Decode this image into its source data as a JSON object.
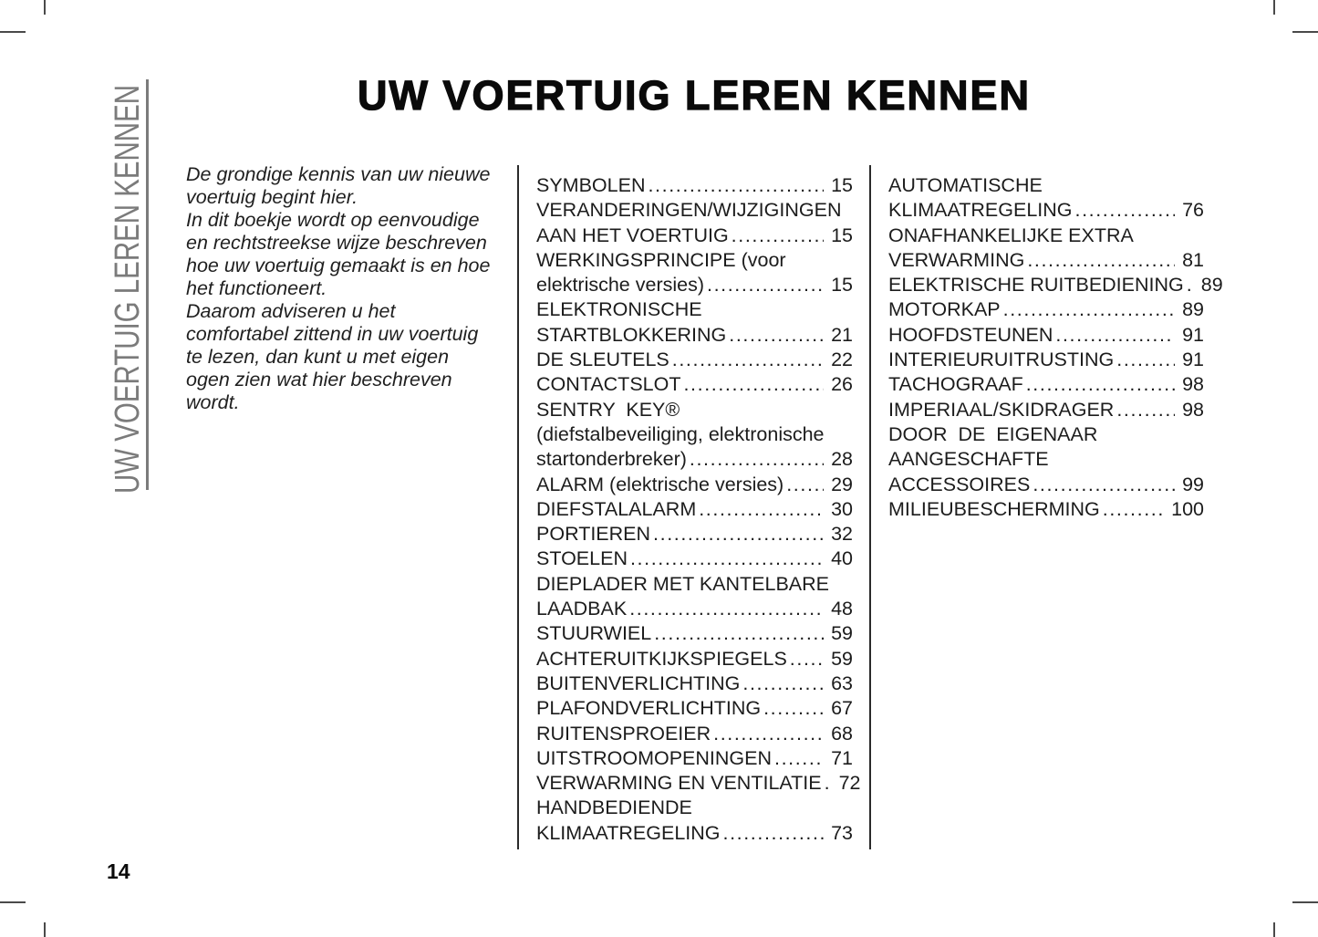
{
  "header": {
    "title": "UW VOERTUIG LEREN KENNEN"
  },
  "sidebar": {
    "vertical_label": "UW VOERTUIG LEREN KENNEN"
  },
  "intro": {
    "paragraphs": [
      "De grondige kennis van uw nieuwe voertuig begint hier.",
      "In dit boekje wordt op eenvoudige en rechtstreekse wijze beschreven hoe uw voertuig gemaakt is en hoe het functioneert.",
      "Daarom adviseren u het comfortabel zittend in uw voertuig te lezen, dan kunt u met eigen ogen zien wat hier beschreven wordt."
    ]
  },
  "toc": {
    "columns": [
      {
        "entries": [
          {
            "lines": [
              "SYMBOLEN"
            ],
            "page": "15"
          },
          {
            "lines": [
              "VERANDERINGEN/WIJZIGINGEN",
              "AAN HET VOERTUIG"
            ],
            "page": "15"
          },
          {
            "lines": [
              "WERKINGSPRINCIPE (voor",
              "elektrische versies)"
            ],
            "page": "15"
          },
          {
            "lines": [
              "ELEKTRONISCHE",
              "STARTBLOKKERING"
            ],
            "page": "21"
          },
          {
            "lines": [
              "DE SLEUTELS"
            ],
            "page": "22"
          },
          {
            "lines": [
              "CONTACTSLOT"
            ],
            "page": "26"
          },
          {
            "lines": [
              "SENTRY  KEY®",
              "(diefstalbeveiliging, elektronische",
              "startonderbreker)"
            ],
            "page": "28"
          },
          {
            "lines": [
              "ALARM (elektrische versies)"
            ],
            "page": "29"
          },
          {
            "lines": [
              "DIEFSTALALARM"
            ],
            "page": "30"
          },
          {
            "lines": [
              "PORTIEREN"
            ],
            "page": "32"
          },
          {
            "lines": [
              "STOELEN"
            ],
            "page": "40"
          },
          {
            "lines": [
              "DIEPLADER MET KANTELBARE",
              "LAADBAK"
            ],
            "page": "48"
          },
          {
            "lines": [
              "STUURWIEL"
            ],
            "page": "59"
          },
          {
            "lines": [
              "ACHTERUITKIJKSPIEGELS"
            ],
            "page": "59"
          },
          {
            "lines": [
              "BUITENVERLICHTING"
            ],
            "page": "63"
          },
          {
            "lines": [
              "PLAFONDVERLICHTING"
            ],
            "page": "67"
          },
          {
            "lines": [
              "RUITENSPROEIER"
            ],
            "page": "68"
          },
          {
            "lines": [
              "UITSTROOMOPENINGEN"
            ],
            "page": "71"
          },
          {
            "lines": [
              "VERWARMING EN VENTILATIE"
            ],
            "page": "72"
          },
          {
            "lines": [
              "HANDBEDIENDE",
              "KLIMAATREGELING"
            ],
            "page": "73"
          }
        ]
      },
      {
        "entries": [
          {
            "lines": [
              "AUTOMATISCHE",
              "KLIMAATREGELING"
            ],
            "page": "76"
          },
          {
            "lines": [
              "ONAFHANKELIJKE EXTRA",
              "VERWARMING"
            ],
            "page": "81"
          },
          {
            "lines": [
              "ELEKTRISCHE RUITBEDIENING"
            ],
            "page": "89"
          },
          {
            "lines": [
              "MOTORKAP"
            ],
            "page": "89"
          },
          {
            "lines": [
              "HOOFDSTEUNEN"
            ],
            "page": "91"
          },
          {
            "lines": [
              "INTERIEURUITRUSTING"
            ],
            "page": "91"
          },
          {
            "lines": [
              "TACHOGRAAF"
            ],
            "page": "98"
          },
          {
            "lines": [
              "IMPERIAAL/SKIDRAGER"
            ],
            "page": "98"
          },
          {
            "lines": [
              "DOOR  DE  EIGENAAR",
              "AANGESCHAFTE",
              "ACCESSOIRES"
            ],
            "page": "99"
          },
          {
            "lines": [
              "MILIEUBESCHERMING"
            ],
            "page": "100"
          }
        ]
      }
    ]
  },
  "footer": {
    "page_number": "14"
  },
  "colors": {
    "text": "#1a1a1a",
    "sidebar_gray": "#7b7b7b",
    "rule": "#2a2a2a",
    "crop_mark": "#4a4a4a"
  }
}
